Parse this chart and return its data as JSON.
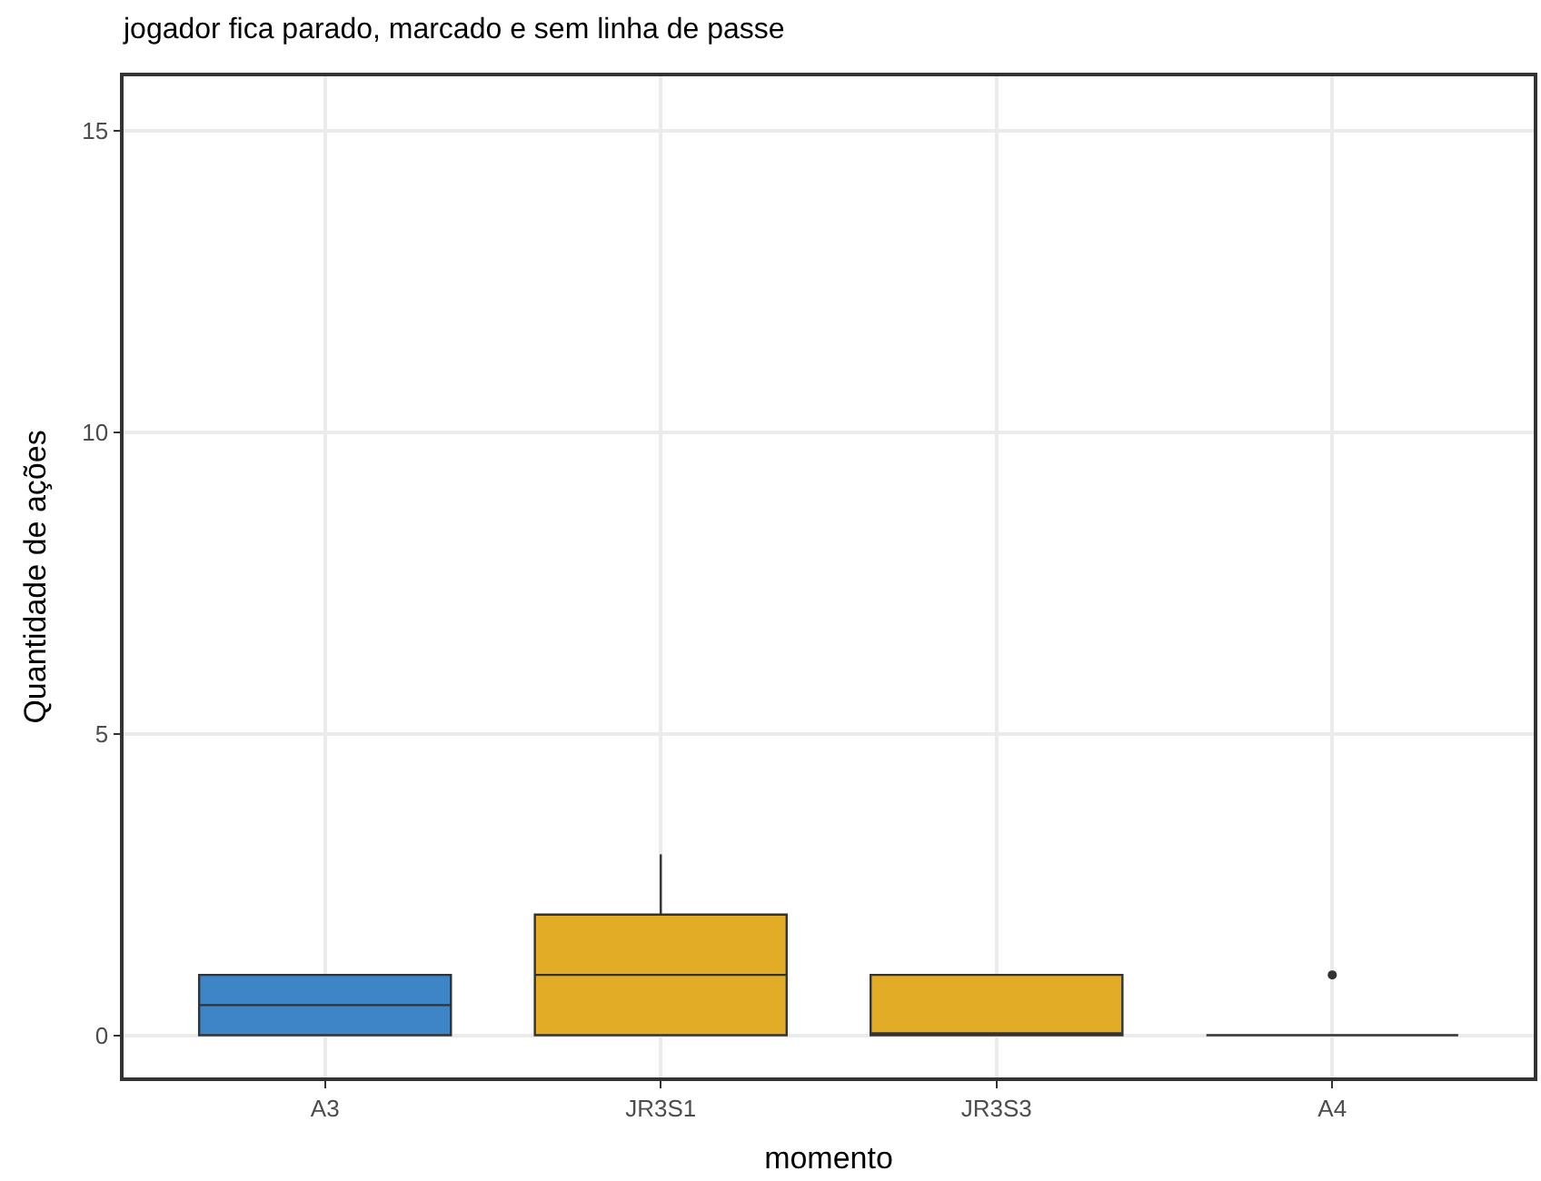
{
  "chart_data": {
    "type": "box",
    "title": "jogador fica parado, marcado e sem linha de passe",
    "xlabel": "momento",
    "ylabel": "Quantidade de ações",
    "categories": [
      "A3",
      "JR3S1",
      "JR3S3",
      "A4"
    ],
    "colors": [
      "#3d85c6",
      "#e3ac27",
      "#e3ac27",
      "#333333"
    ],
    "boxes": [
      {
        "low": 0,
        "q1": 0,
        "median": 0.5,
        "q3": 1,
        "high": 1
      },
      {
        "low": 0,
        "q1": 0,
        "median": 1,
        "q3": 2,
        "high": 3
      },
      {
        "low": 0,
        "q1": 0,
        "median": 0,
        "q3": 1,
        "high": 1
      },
      {
        "low": 0,
        "q1": 0,
        "median": 0,
        "q3": 0,
        "high": 0,
        "outliers": [
          1
        ]
      }
    ],
    "ylim": [
      -0.7,
      15.9
    ],
    "yticks": [
      0,
      5,
      10,
      15
    ],
    "grid": true
  }
}
